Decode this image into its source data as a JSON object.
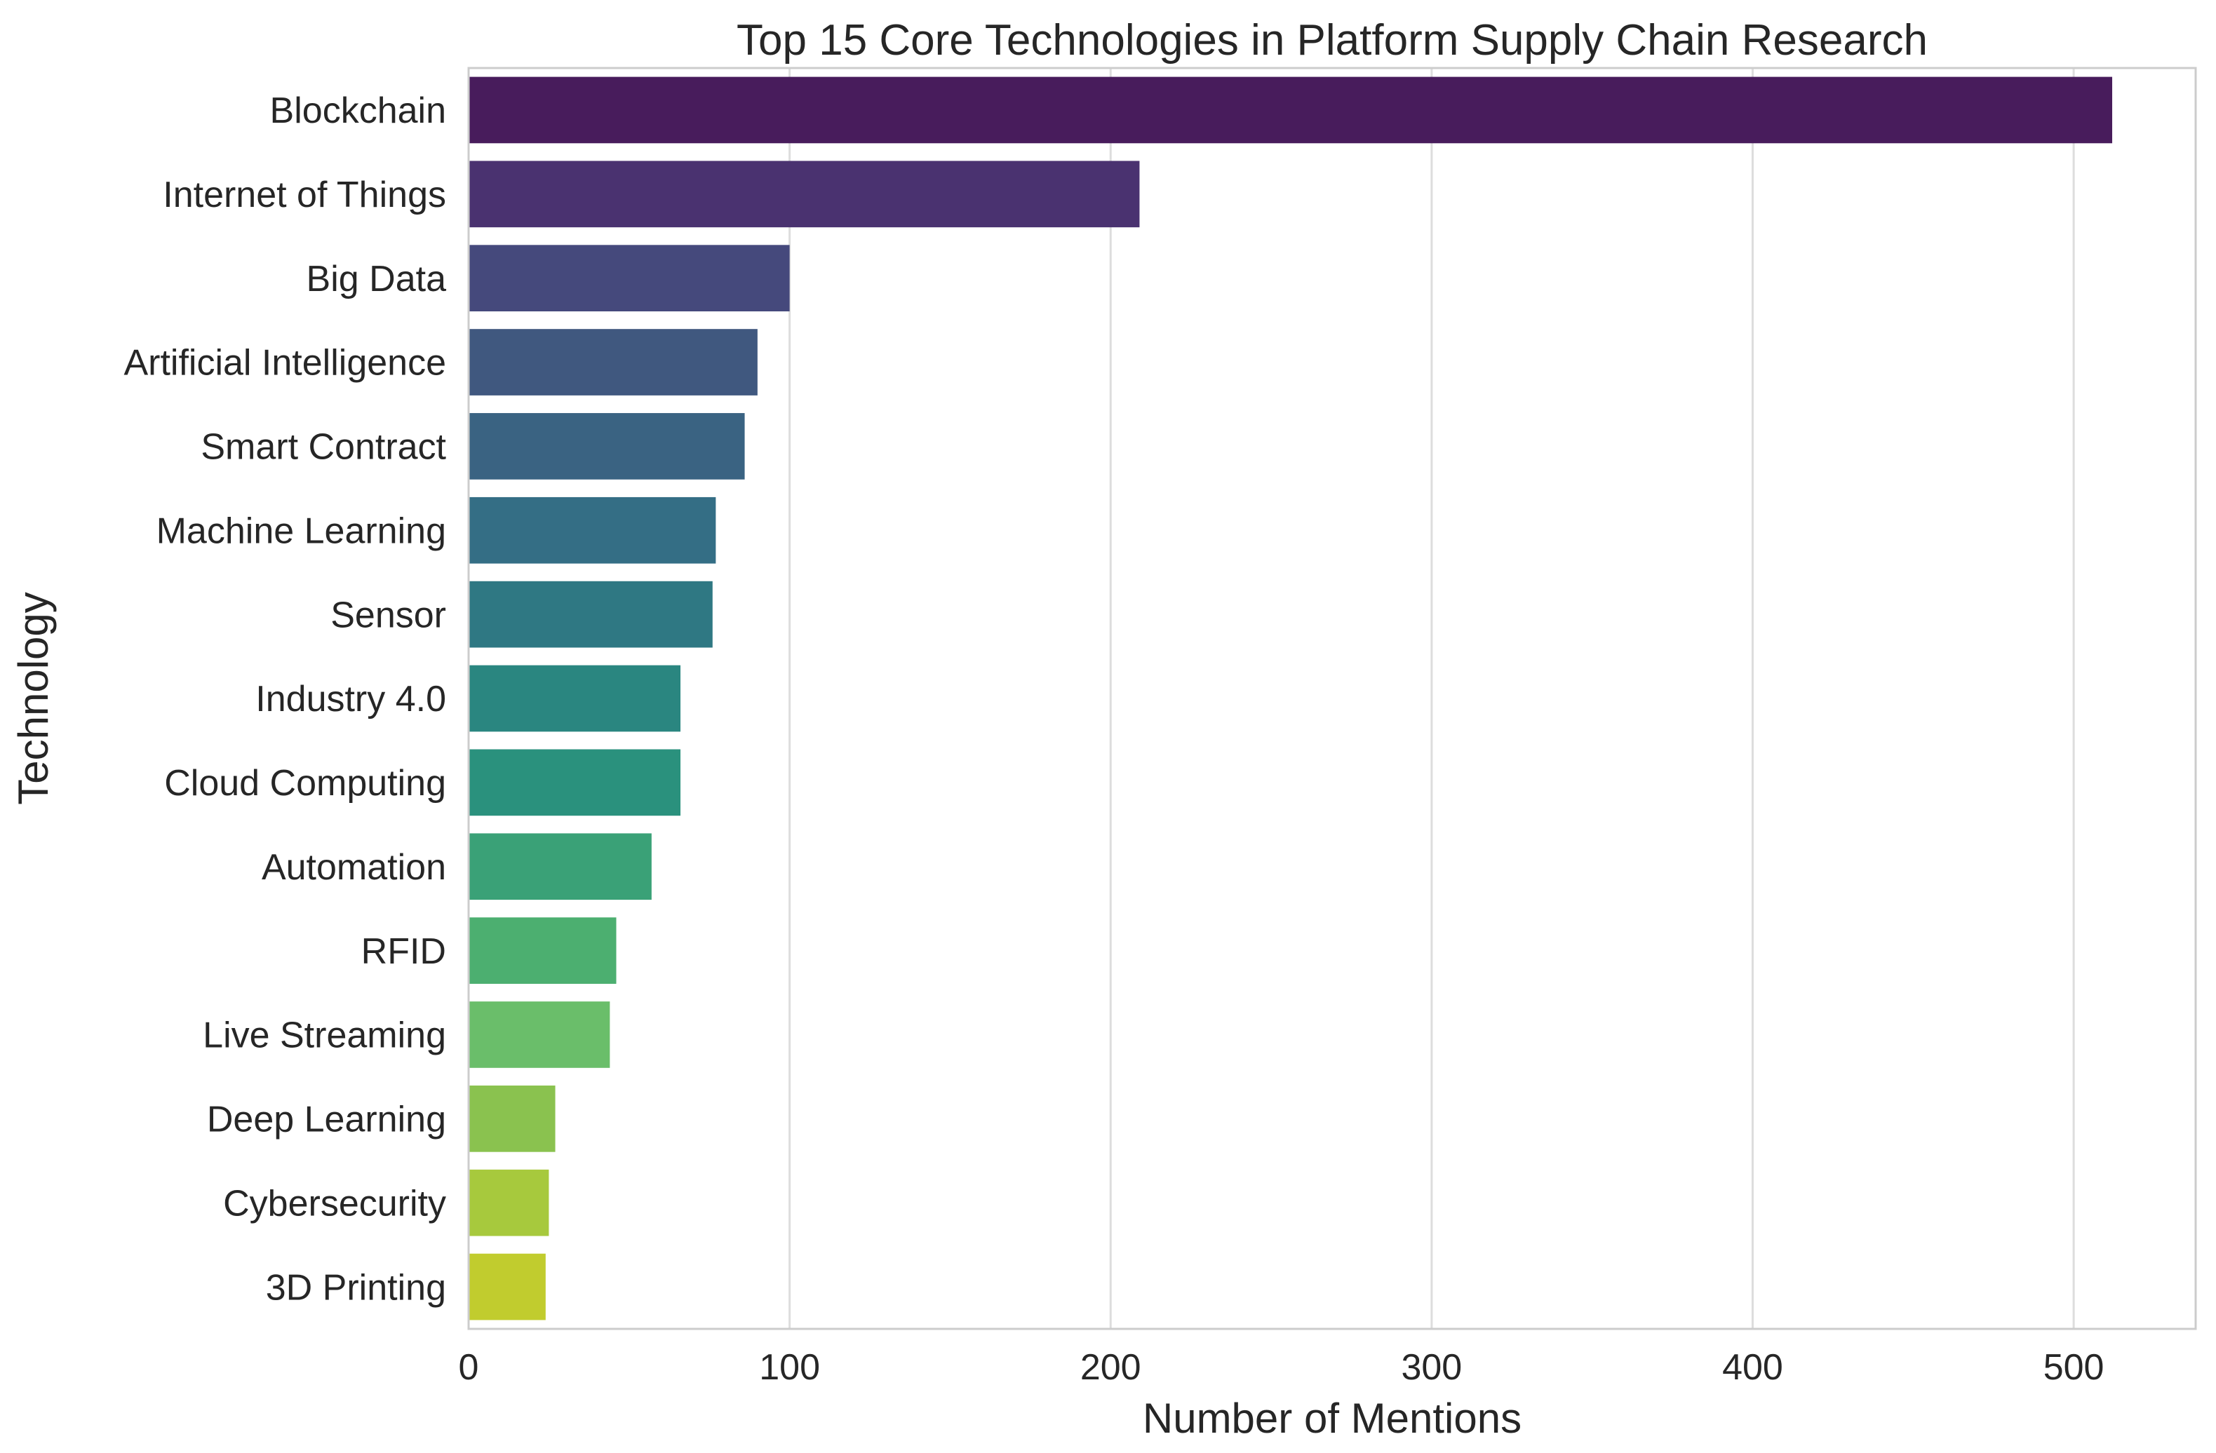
{
  "chart_data": {
    "type": "bar",
    "orientation": "horizontal",
    "title": "Top 15 Core Technologies in Platform Supply Chain Research",
    "xlabel": "Number of Mentions",
    "ylabel": "Technology",
    "xlim": [
      0,
      538
    ],
    "xticks": [
      0,
      100,
      200,
      300,
      400,
      500
    ],
    "xtick_labels": [
      "0",
      "100",
      "200",
      "300",
      "400",
      "500"
    ],
    "grid": "vertical",
    "categories": [
      "Blockchain",
      "Internet of Things",
      "Big Data",
      "Artificial Intelligence",
      "Smart Contract",
      "Machine Learning",
      "Sensor",
      "Industry 4.0",
      "Cloud Computing",
      "Automation",
      "RFID",
      "Live Streaming",
      "Deep Learning",
      "Cybersecurity",
      "3D Printing"
    ],
    "values": [
      512,
      209,
      100,
      90,
      86,
      77,
      76,
      66,
      66,
      57,
      46,
      44,
      27,
      25,
      24
    ],
    "colors": [
      "#481c5c",
      "#4a3270",
      "#45497c",
      "#40587f",
      "#3a6382",
      "#346e85",
      "#2f7883",
      "#2a8680",
      "#2a917d",
      "#3aa177",
      "#4caf70",
      "#6abe6a",
      "#8ac24f",
      "#a7c93d",
      "#c1cc2e"
    ]
  }
}
